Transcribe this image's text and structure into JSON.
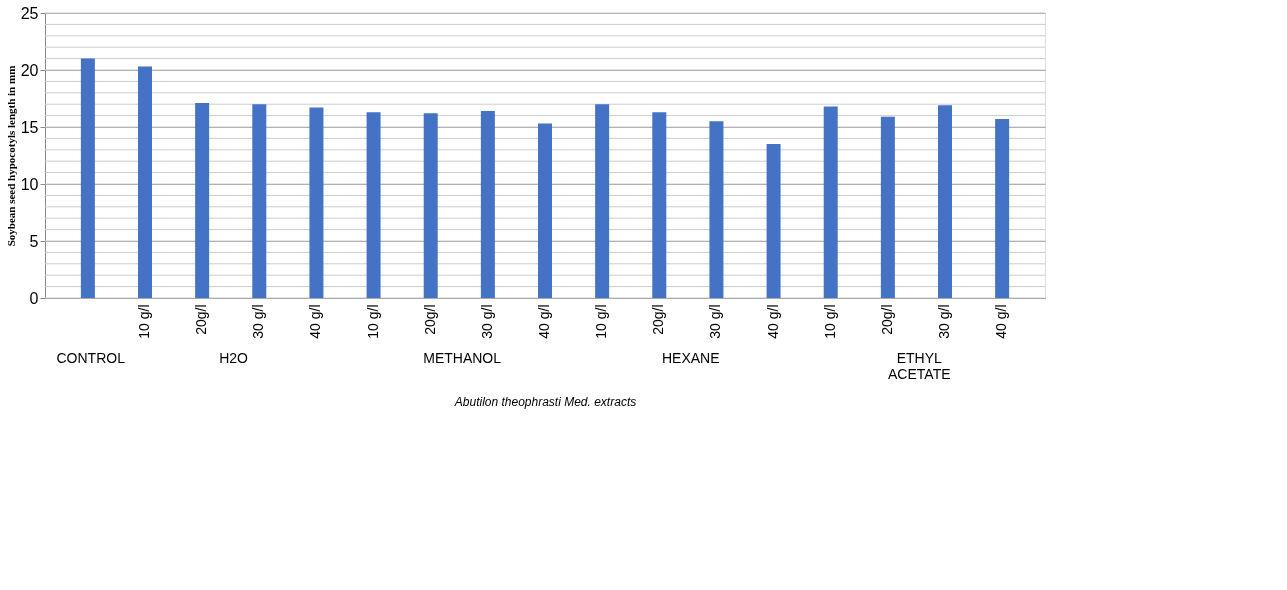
{
  "chart_data": {
    "type": "bar",
    "categories": [
      null,
      "10 g/l",
      "20g/l",
      "30 g/l",
      "40 g/l",
      "10 g/l",
      "20g/l",
      "30 g/l",
      "40 g/l",
      "10 g/l",
      "20g/l",
      "30 g/l",
      "40 g/l",
      "10 g/l",
      "20g/l",
      "30 g/l",
      "40 g/l"
    ],
    "values": [
      21.0,
      20.3,
      17.1,
      17.0,
      16.7,
      16.3,
      16.2,
      16.4,
      15.3,
      17.0,
      16.3,
      15.5,
      13.5,
      16.8,
      15.9,
      16.9,
      15.7
    ],
    "color": "#4472c4",
    "ylim": [
      0,
      25
    ],
    "yticks": [
      0,
      5,
      10,
      15,
      20,
      25
    ],
    "grid": "y",
    "ylabel": "Soybean seed hypocotyls length in mm",
    "xlabel": "Abutilon theophrasti  Med. extracts",
    "annotations": [
      "CONTROL",
      "H2O",
      "METHANOL",
      "HEXANE",
      "ETHYL ACETATE"
    ]
  }
}
